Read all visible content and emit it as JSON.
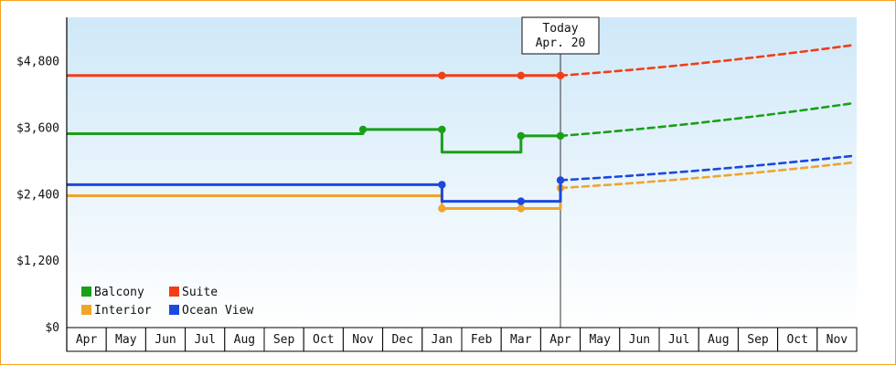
{
  "colors": {
    "page_border": "#f6a21d",
    "plot_bg_top": "#cfe8f8",
    "plot_bg_bottom": "#ffffff",
    "axis": "#000000",
    "text": "#111111",
    "today_line": "#333333",
    "today_box_bg": "#ffffff",
    "today_box_border": "#333333",
    "cell_bg": "#ffffff",
    "cell_border": "#000000"
  },
  "chart_data": {
    "type": "line",
    "grid": false,
    "legend_position": "bottom-left-inside",
    "ylim": [
      0,
      5600
    ],
    "x_labels": [
      "Apr",
      "May",
      "Jun",
      "Jul",
      "Aug",
      "Sep",
      "Oct",
      "Nov",
      "Dec",
      "Jan",
      "Feb",
      "Mar",
      "Apr",
      "May",
      "Jun",
      "Jul",
      "Aug",
      "Sep",
      "Oct",
      "Nov"
    ],
    "y_ticks": [
      {
        "value": 0,
        "label": "$0"
      },
      {
        "value": 1200,
        "label": "$1,200"
      },
      {
        "value": 2400,
        "label": "$2,400"
      },
      {
        "value": 3600,
        "label": "$3,600"
      },
      {
        "value": 4800,
        "label": "$4,800"
      }
    ],
    "today": {
      "index": 12,
      "line1": "Today",
      "line2": "Apr. 20"
    },
    "series": [
      {
        "name": "Balcony",
        "color": "#18a018",
        "solid_points": [
          [
            0,
            3500
          ],
          [
            7,
            3500
          ],
          [
            7,
            3575
          ],
          [
            9,
            3575
          ],
          [
            9,
            3165
          ],
          [
            11,
            3165
          ],
          [
            11,
            3460
          ],
          [
            12,
            3460
          ]
        ],
        "markers": [
          [
            7,
            3575
          ],
          [
            9,
            3575
          ],
          [
            11,
            3460
          ],
          [
            12,
            3460
          ]
        ],
        "forecast_end_value": 4050
      },
      {
        "name": "Suite",
        "color": "#f23d17",
        "solid_points": [
          [
            0,
            4550
          ],
          [
            12,
            4550
          ]
        ],
        "markers": [
          [
            9,
            4550
          ],
          [
            11,
            4550
          ],
          [
            12,
            4550
          ]
        ],
        "forecast_end_value": 5100
      },
      {
        "name": "Interior",
        "color": "#f0a42a",
        "solid_points": [
          [
            0,
            2380
          ],
          [
            9,
            2380
          ],
          [
            9,
            2150
          ],
          [
            12,
            2150
          ],
          [
            12,
            2520
          ]
        ],
        "markers": [
          [
            9,
            2150
          ],
          [
            11,
            2150
          ],
          [
            12,
            2520
          ]
        ],
        "forecast_end_value": 2980
      },
      {
        "name": "Ocean View",
        "color": "#1c48dd",
        "solid_points": [
          [
            0,
            2580
          ],
          [
            9,
            2580
          ],
          [
            9,
            2280
          ],
          [
            12,
            2280
          ],
          [
            12,
            2660
          ]
        ],
        "markers": [
          [
            9,
            2580
          ],
          [
            11,
            2280
          ],
          [
            12,
            2660
          ]
        ],
        "forecast_end_value": 3100
      }
    ]
  }
}
